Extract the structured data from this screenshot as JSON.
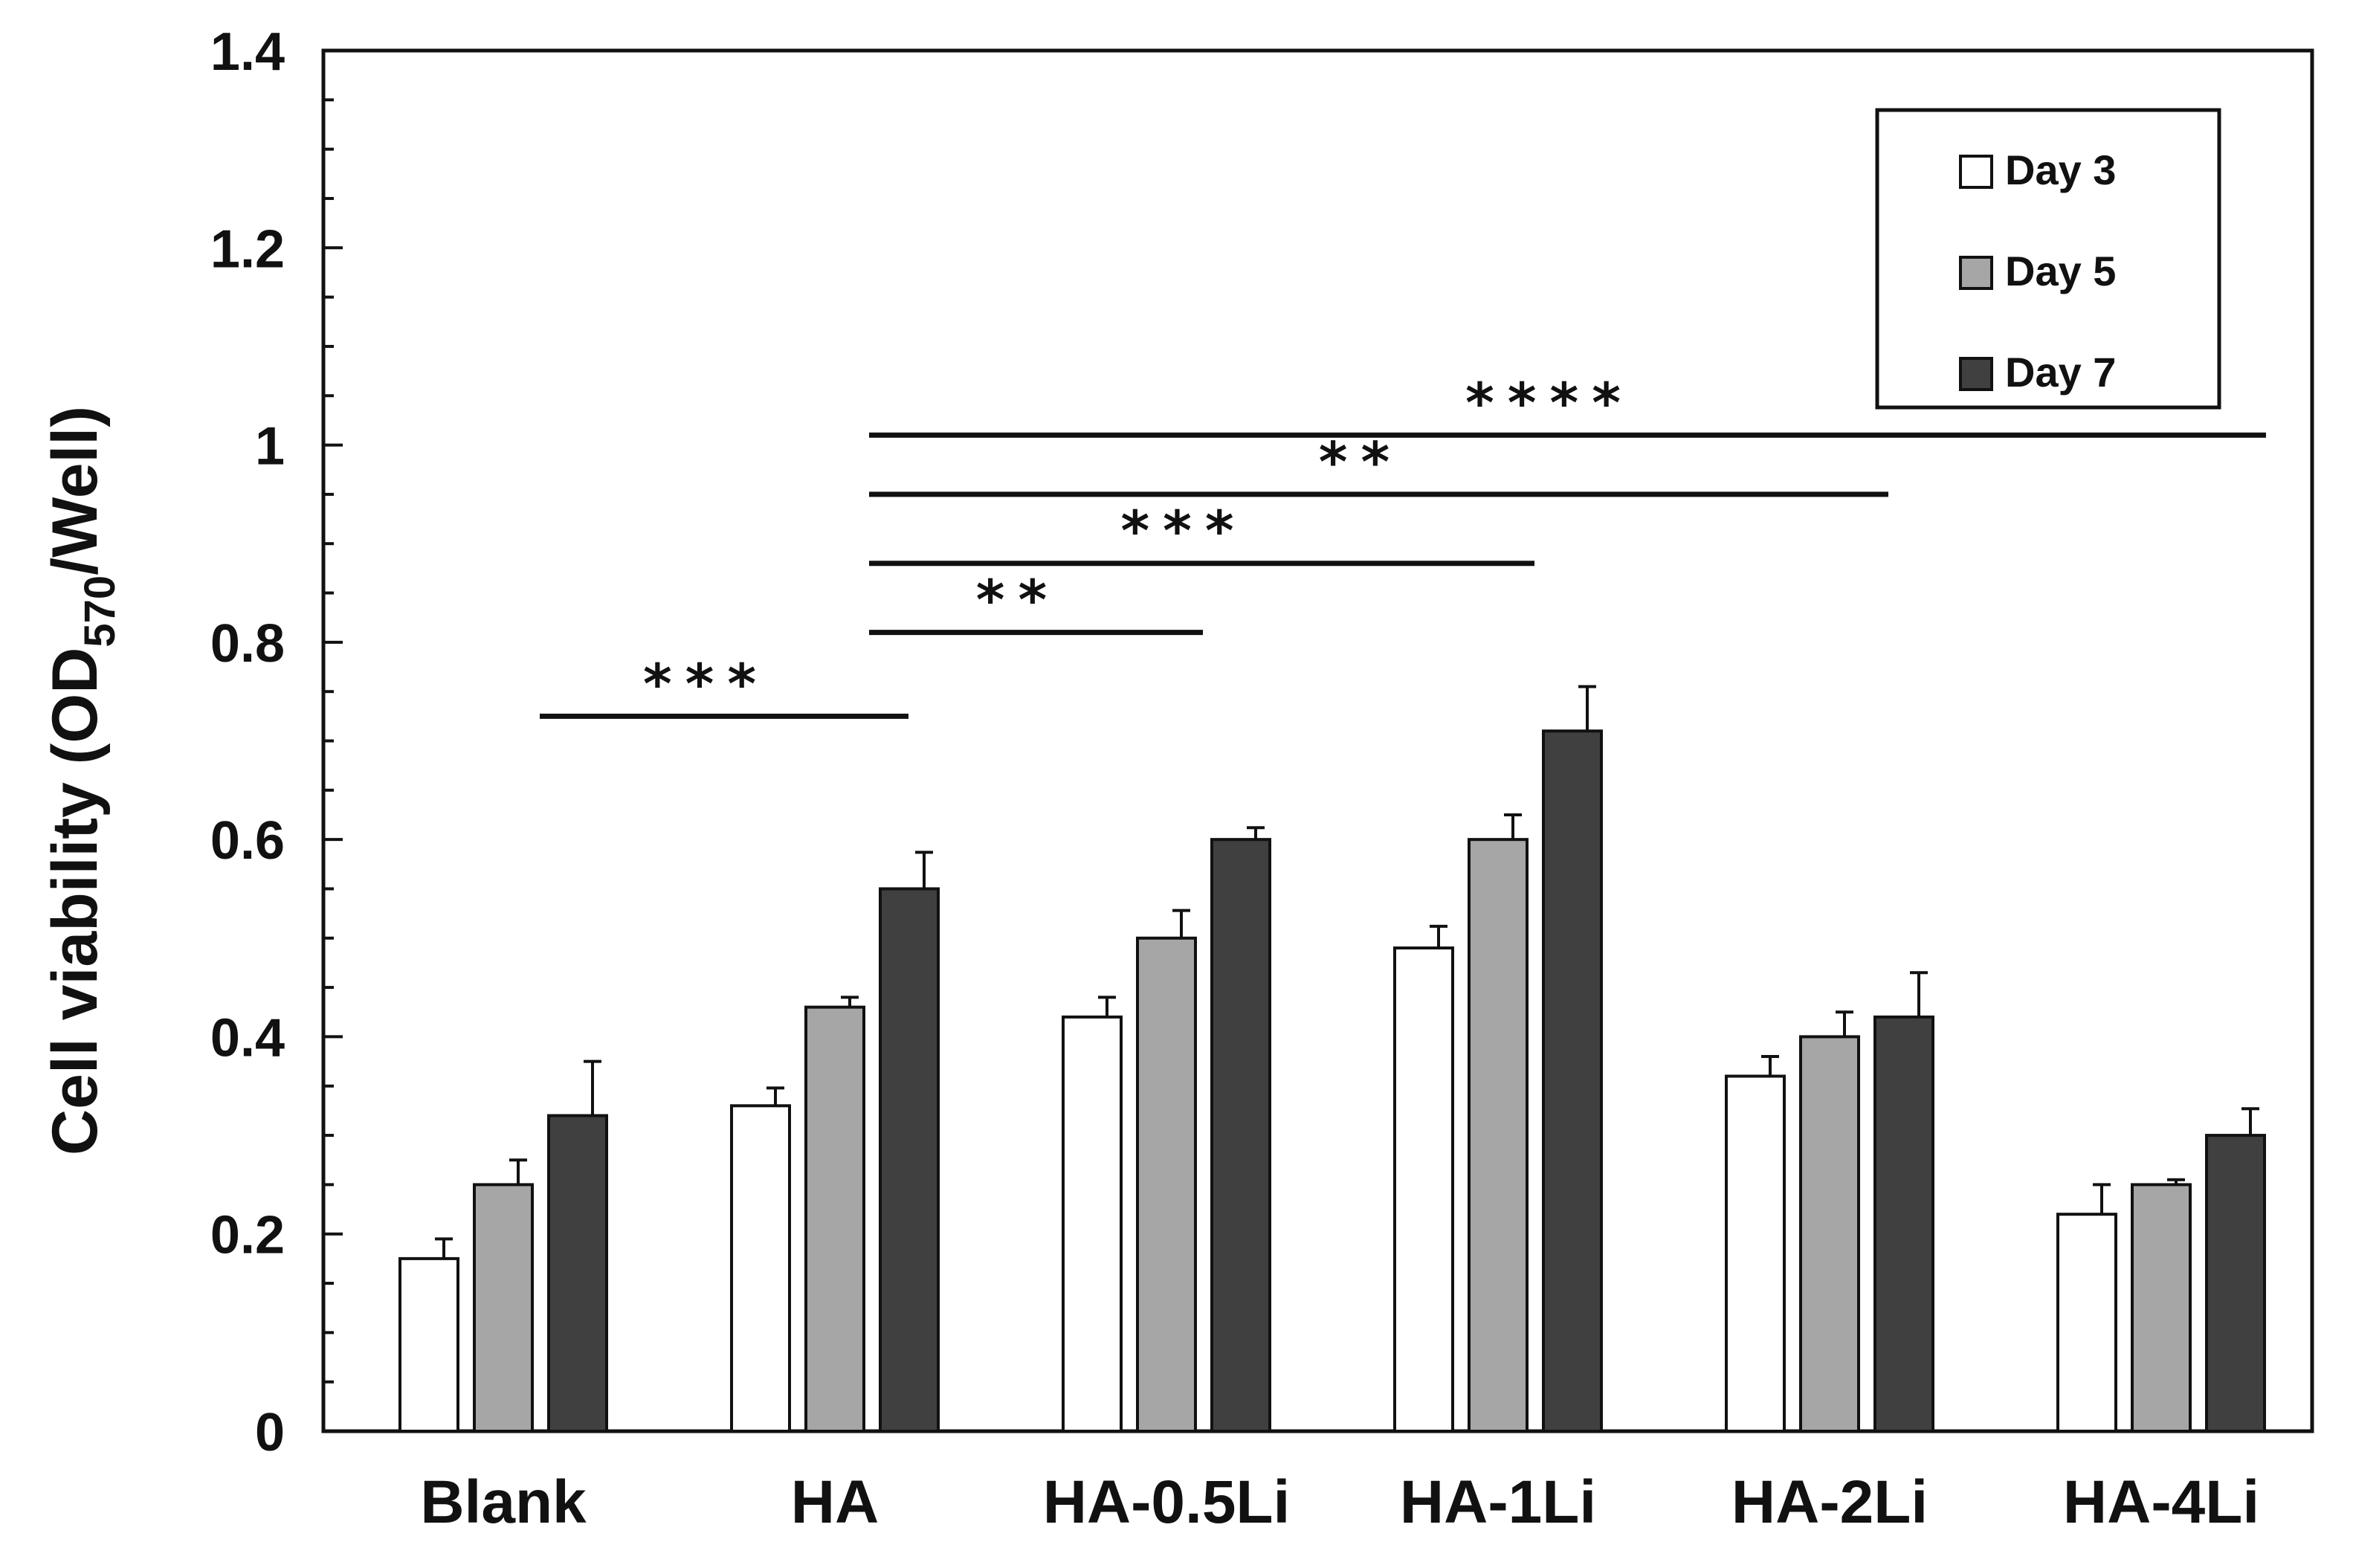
{
  "chart_data": {
    "type": "bar",
    "ylabel": "Cell viability (OD570/Well)",
    "ylabel_parts": {
      "prefix": "Cell viability (OD",
      "subscript": "570",
      "suffix": "/Well)"
    },
    "ylim": [
      0,
      1.4
    ],
    "y_ticks": [
      {
        "value": 0,
        "label": "0"
      },
      {
        "value": 0.2,
        "label": "0.2"
      },
      {
        "value": 0.4,
        "label": "0.4"
      },
      {
        "value": 0.6,
        "label": "0.6"
      },
      {
        "value": 0.8,
        "label": "0.8"
      },
      {
        "value": 1.0,
        "label": "1"
      },
      {
        "value": 1.2,
        "label": "1.2"
      },
      {
        "value": 1.4,
        "label": "1.4"
      }
    ],
    "categories": [
      "Blank",
      "HA",
      "HA-0.5Li",
      "HA-1Li",
      "HA-2Li",
      "HA-4Li"
    ],
    "series": [
      {
        "name": "Day 3",
        "color": "#ffffff",
        "values": [
          0.175,
          0.33,
          0.42,
          0.49,
          0.36,
          0.22
        ],
        "errors": [
          0.02,
          0.018,
          0.02,
          0.022,
          0.02,
          0.03
        ]
      },
      {
        "name": "Day 5",
        "color": "#a6a6a6",
        "values": [
          0.25,
          0.43,
          0.5,
          0.6,
          0.4,
          0.25
        ],
        "errors": [
          0.025,
          0.01,
          0.028,
          0.025,
          0.025,
          0.005
        ]
      },
      {
        "name": "Day 7",
        "color": "#404040",
        "values": [
          0.32,
          0.55,
          0.6,
          0.71,
          0.42,
          0.3
        ],
        "errors": [
          0.055,
          0.037,
          0.012,
          0.045,
          0.045,
          0.027
        ]
      }
    ],
    "legend_position": "top-right",
    "significance": [
      {
        "from": "Blank",
        "to": "HA",
        "level": 0.725,
        "label": "***"
      },
      {
        "from": "HA",
        "to": "HA-0.5Li",
        "level": 0.81,
        "label": "**"
      },
      {
        "from": "HA",
        "to": "HA-1Li",
        "level": 0.88,
        "label": "***"
      },
      {
        "from": "HA",
        "to": "HA-2Li",
        "level": 0.95,
        "label": "**"
      },
      {
        "from": "HA",
        "to": "HA-4Li",
        "level": 1.01,
        "label": "****"
      }
    ]
  }
}
